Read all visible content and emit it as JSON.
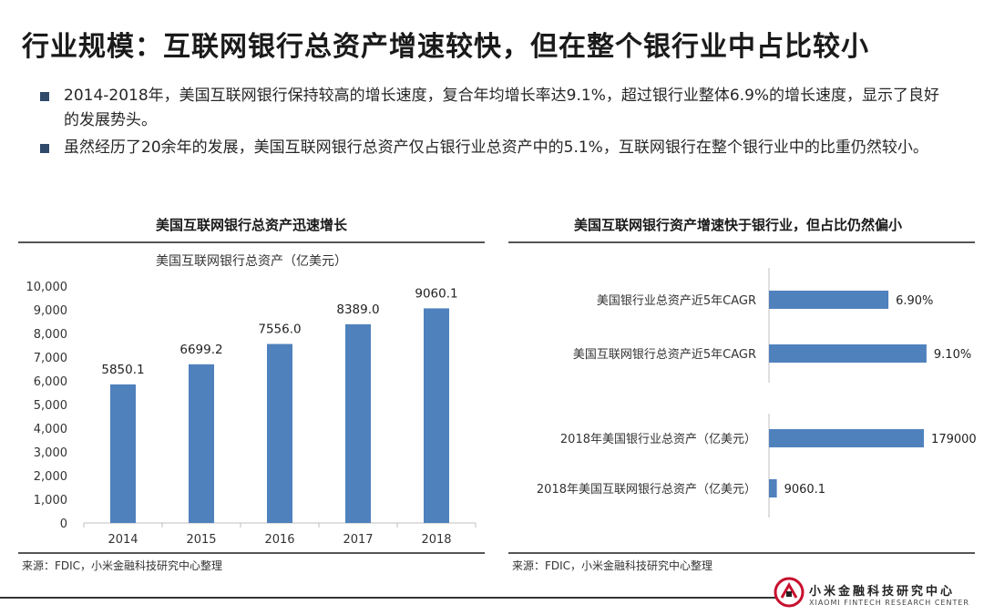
{
  "page": {
    "title": "行业规模：互联网银行总资产增速较快，但在整个银行业中占比较小",
    "bullets": [
      "2014-2018年，美国互联网银行保持较高的增长速度，复合年均增长率达9.1%，超过银行业整体6.9%的增长速度，显示了良好的发展势头。",
      "虽然经历了20余年的发展，美国互联网银行总资产仅占银行业总资产中的5.1%，互联网银行在整个银行业中的比重仍然较小。"
    ],
    "accent_color": "#4f81bd"
  },
  "chart_data": [
    {
      "type": "bar",
      "title": "美国互联网银行总资产迅速增长",
      "subtitle": "美国互联网银行总资产（亿美元）",
      "categories": [
        "2014",
        "2015",
        "2016",
        "2017",
        "2018"
      ],
      "values": [
        5850.1,
        6699.2,
        7556.0,
        8389.0,
        9060.1
      ],
      "data_labels": [
        "5850.1",
        "6699.2",
        "7556.0",
        "8389.0",
        "9060.1"
      ],
      "ylim": [
        0,
        10000
      ],
      "yticks": [
        0,
        1000,
        2000,
        3000,
        4000,
        5000,
        6000,
        7000,
        8000,
        9000,
        10000
      ],
      "ytick_labels": [
        "0",
        "1,000",
        "2,000",
        "3,000",
        "4,000",
        "5,000",
        "6,000",
        "7,000",
        "8,000",
        "9,000",
        "10,000"
      ],
      "grid": false,
      "source": "来源：FDIC，小米金融科技研究中心整理"
    },
    {
      "type": "bar",
      "orientation": "horizontal",
      "title": "美国互联网银行资产增速快于银行业，但占比仍然偏小",
      "groups": [
        {
          "categories": [
            "美国银行业总资产近5年CAGR",
            "美国互联网银行总资产近5年CAGR"
          ],
          "values": [
            6.9,
            9.1
          ],
          "data_labels": [
            "6.90%",
            "9.10%"
          ],
          "xlim": [
            0,
            10
          ]
        },
        {
          "categories": [
            "2018年美国银行业总资产（亿美元）",
            "2018年美国互联网银行总资产（亿美元）"
          ],
          "values": [
            179000,
            9060.1
          ],
          "data_labels": [
            "179000",
            "9060.1"
          ],
          "xlim": [
            0,
            200000
          ]
        }
      ],
      "source": "来源：FDIC，小米金融科技研究中心整理"
    }
  ],
  "logo": {
    "name_cn": "小米金融科技研究中心",
    "name_en": "XIAOMI FINTECH RESEARCH CENTER"
  }
}
